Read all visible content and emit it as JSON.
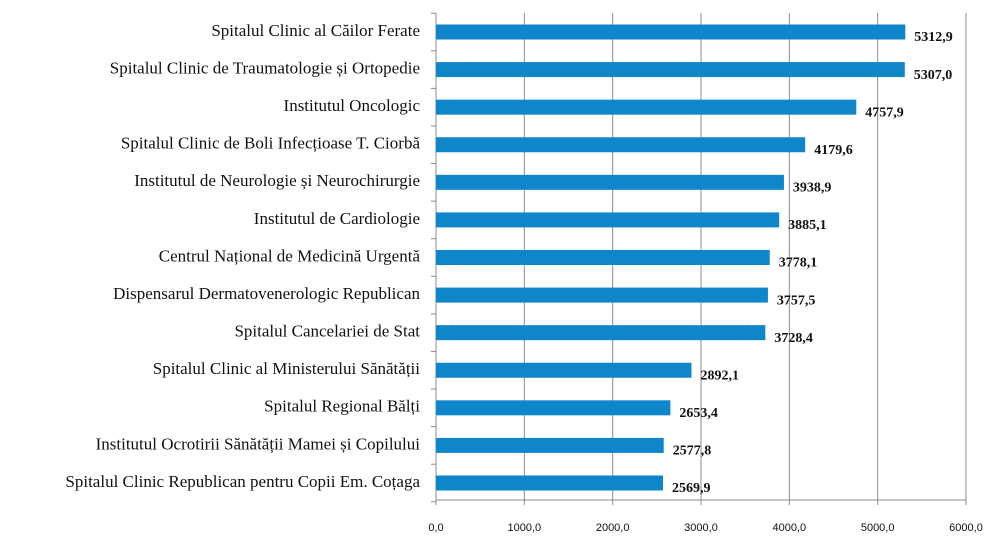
{
  "chart_data": {
    "type": "barh",
    "categories": [
      "Spitalul Clinic al Căilor Ferate",
      "Spitalul Clinic de Traumatologie și Ortopedie",
      "Institutul Oncologic",
      "Spitalul Clinic de Boli Infecțioase T. Ciorbă",
      "Institutul de Neurologie și Neurochirurgie",
      "Institutul de Cardiologie",
      "Centrul Național de Medicină Urgentă",
      "Dispensarul Dermatovenerologic Republican",
      "Spitalul Cancelariei de Stat",
      "Spitalul Clinic al Ministerului Sănătății",
      "Spitalul Regional Bălți",
      "Institutul Ocrotirii Sănătății Mamei și Copilului",
      "Spitalul Clinic Republican pentru Copii Em. Coțaga"
    ],
    "values": [
      5312.9,
      5307.0,
      4757.9,
      4179.6,
      3938.9,
      3885.1,
      3778.1,
      3757.5,
      3728.4,
      2892.1,
      2653.4,
      2577.8,
      2569.9
    ],
    "value_labels": [
      "5312,9",
      "5307,0",
      "4757,9",
      "4179,6",
      "3938,9",
      "3885,1",
      "3778,1",
      "3757,5",
      "3728,4",
      "2892,1",
      "2653,4",
      "2577,8",
      "2569,9"
    ],
    "color": "#0e86c9",
    "xlim": [
      0,
      6000
    ],
    "xticks": [
      {
        "value": 0,
        "label": "0,0"
      },
      {
        "value": 1000,
        "label": "1000,0"
      },
      {
        "value": 2000,
        "label": "2000,0"
      },
      {
        "value": 3000,
        "label": "3000,0"
      },
      {
        "value": 4000,
        "label": "4000,0"
      },
      {
        "value": 5000,
        "label": "5000,0"
      },
      {
        "value": 6000,
        "label": "6000,0"
      }
    ],
    "grid": true
  }
}
